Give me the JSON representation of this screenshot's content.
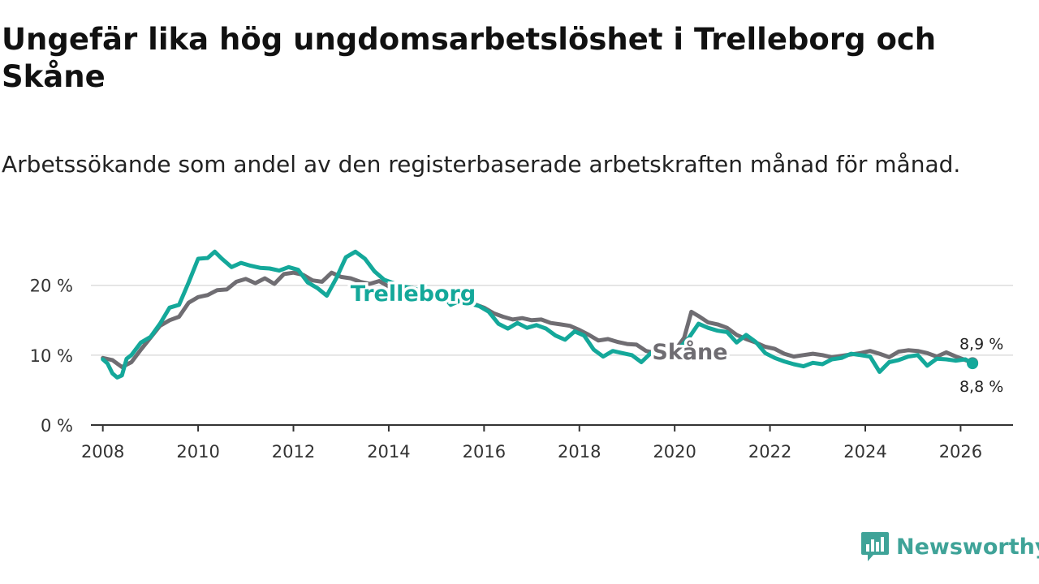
{
  "title": "Ungefär lika hög ungdomsarbetslöshet i Trelleborg och Skåne",
  "subtitle": "Arbetssökande som andel av den registerbaserade arbetskraften månad för månad.",
  "brand": {
    "name": "Newsworthy",
    "color": "#3fa398",
    "icon": "newsworthy-chart-bubble-icon"
  },
  "chart_data": {
    "type": "line",
    "ylim": [
      0,
      26
    ],
    "xlim": [
      2007.75,
      2027.1
    ],
    "y_ticks": [
      {
        "value": 0,
        "label": "0 %"
      },
      {
        "value": 10,
        "label": "10 %"
      },
      {
        "value": 20,
        "label": "20 %"
      }
    ],
    "x_ticks": [
      {
        "value": 2008,
        "label": "2008"
      },
      {
        "value": 2010,
        "label": "2010"
      },
      {
        "value": 2012,
        "label": "2012"
      },
      {
        "value": 2014,
        "label": "2014"
      },
      {
        "value": 2016,
        "label": "2016"
      },
      {
        "value": 2018,
        "label": "2018"
      },
      {
        "value": 2020,
        "label": "2020"
      },
      {
        "value": 2022,
        "label": "2022"
      },
      {
        "value": 2024,
        "label": "2024"
      },
      {
        "value": 2026,
        "label": "2026"
      }
    ],
    "grid": true,
    "series": [
      {
        "name": "Skåne",
        "color": "#6f6d72",
        "label": "Skåne",
        "end_label": "8,9 %",
        "points": [
          [
            2008.0,
            9.6
          ],
          [
            2008.2,
            9.3
          ],
          [
            2008.4,
            8.3
          ],
          [
            2008.6,
            9.0
          ],
          [
            2008.8,
            10.8
          ],
          [
            2009.0,
            12.5
          ],
          [
            2009.2,
            14.2
          ],
          [
            2009.4,
            15.0
          ],
          [
            2009.6,
            15.5
          ],
          [
            2009.8,
            17.5
          ],
          [
            2010.0,
            18.3
          ],
          [
            2010.2,
            18.6
          ],
          [
            2010.4,
            19.3
          ],
          [
            2010.6,
            19.4
          ],
          [
            2010.8,
            20.5
          ],
          [
            2011.0,
            20.9
          ],
          [
            2011.2,
            20.3
          ],
          [
            2011.4,
            21.0
          ],
          [
            2011.6,
            20.2
          ],
          [
            2011.8,
            21.6
          ],
          [
            2012.0,
            21.8
          ],
          [
            2012.2,
            21.5
          ],
          [
            2012.4,
            20.7
          ],
          [
            2012.6,
            20.5
          ],
          [
            2012.8,
            21.8
          ],
          [
            2013.0,
            21.2
          ],
          [
            2013.2,
            21.0
          ],
          [
            2013.4,
            20.5
          ],
          [
            2013.6,
            20.2
          ],
          [
            2013.8,
            20.6
          ],
          [
            2014.0,
            19.8
          ],
          [
            2014.2,
            19.2
          ],
          [
            2014.4,
            18.6
          ],
          [
            2014.6,
            19.4
          ],
          [
            2014.8,
            19.1
          ],
          [
            2015.0,
            18.6
          ],
          [
            2015.2,
            18.4
          ],
          [
            2015.4,
            17.9
          ],
          [
            2015.6,
            17.6
          ],
          [
            2015.8,
            17.3
          ],
          [
            2016.0,
            16.8
          ],
          [
            2016.2,
            16.0
          ],
          [
            2016.4,
            15.5
          ],
          [
            2016.6,
            15.1
          ],
          [
            2016.8,
            15.3
          ],
          [
            2017.0,
            15.0
          ],
          [
            2017.2,
            15.1
          ],
          [
            2017.4,
            14.6
          ],
          [
            2017.6,
            14.4
          ],
          [
            2017.8,
            14.2
          ],
          [
            2018.0,
            13.6
          ],
          [
            2018.2,
            12.9
          ],
          [
            2018.4,
            12.1
          ],
          [
            2018.6,
            12.3
          ],
          [
            2018.8,
            11.9
          ],
          [
            2019.0,
            11.6
          ],
          [
            2019.2,
            11.5
          ],
          [
            2019.4,
            10.6
          ],
          [
            2019.6,
            10.3
          ],
          [
            2019.8,
            10.5
          ],
          [
            2020.0,
            10.6
          ],
          [
            2020.2,
            12.5
          ],
          [
            2020.35,
            16.2
          ],
          [
            2020.5,
            15.6
          ],
          [
            2020.7,
            14.7
          ],
          [
            2020.9,
            14.4
          ],
          [
            2021.1,
            13.9
          ],
          [
            2021.3,
            12.9
          ],
          [
            2021.5,
            12.3
          ],
          [
            2021.7,
            11.8
          ],
          [
            2021.9,
            11.2
          ],
          [
            2022.1,
            10.9
          ],
          [
            2022.3,
            10.2
          ],
          [
            2022.5,
            9.8
          ],
          [
            2022.7,
            10.0
          ],
          [
            2022.9,
            10.2
          ],
          [
            2023.1,
            10.0
          ],
          [
            2023.3,
            9.7
          ],
          [
            2023.5,
            9.9
          ],
          [
            2023.7,
            10.1
          ],
          [
            2023.9,
            10.3
          ],
          [
            2024.1,
            10.6
          ],
          [
            2024.3,
            10.2
          ],
          [
            2024.5,
            9.7
          ],
          [
            2024.7,
            10.5
          ],
          [
            2024.9,
            10.7
          ],
          [
            2025.1,
            10.6
          ],
          [
            2025.3,
            10.3
          ],
          [
            2025.5,
            9.8
          ],
          [
            2025.7,
            10.4
          ],
          [
            2025.9,
            9.8
          ],
          [
            2026.1,
            9.3
          ],
          [
            2026.25,
            8.9
          ]
        ]
      },
      {
        "name": "Trelleborg",
        "color": "#14a89a",
        "label": "Trelleborg",
        "end_label": "8,8 %",
        "points": [
          [
            2008.0,
            9.4
          ],
          [
            2008.1,
            8.8
          ],
          [
            2008.2,
            7.4
          ],
          [
            2008.3,
            6.8
          ],
          [
            2008.4,
            7.1
          ],
          [
            2008.5,
            9.5
          ],
          [
            2008.6,
            10.0
          ],
          [
            2008.8,
            11.8
          ],
          [
            2009.0,
            12.6
          ],
          [
            2009.2,
            14.5
          ],
          [
            2009.4,
            16.8
          ],
          [
            2009.6,
            17.2
          ],
          [
            2009.8,
            20.4
          ],
          [
            2010.0,
            23.8
          ],
          [
            2010.2,
            23.9
          ],
          [
            2010.35,
            24.8
          ],
          [
            2010.5,
            23.8
          ],
          [
            2010.7,
            22.6
          ],
          [
            2010.9,
            23.2
          ],
          [
            2011.1,
            22.8
          ],
          [
            2011.3,
            22.5
          ],
          [
            2011.5,
            22.4
          ],
          [
            2011.7,
            22.1
          ],
          [
            2011.9,
            22.6
          ],
          [
            2012.1,
            22.2
          ],
          [
            2012.3,
            20.4
          ],
          [
            2012.5,
            19.6
          ],
          [
            2012.7,
            18.5
          ],
          [
            2012.9,
            21.0
          ],
          [
            2013.1,
            24.0
          ],
          [
            2013.3,
            24.8
          ],
          [
            2013.5,
            23.8
          ],
          [
            2013.7,
            22.0
          ],
          [
            2013.9,
            20.8
          ],
          [
            2014.1,
            20.3
          ],
          [
            2014.3,
            19.8
          ],
          [
            2014.5,
            19.6
          ],
          [
            2014.7,
            19.2
          ],
          [
            2014.9,
            19.1
          ],
          [
            2015.1,
            18.8
          ],
          [
            2015.3,
            17.2
          ],
          [
            2015.5,
            17.8
          ],
          [
            2015.7,
            17.4
          ],
          [
            2015.9,
            17.0
          ],
          [
            2016.1,
            16.2
          ],
          [
            2016.3,
            14.5
          ],
          [
            2016.5,
            13.8
          ],
          [
            2016.7,
            14.6
          ],
          [
            2016.9,
            13.9
          ],
          [
            2017.1,
            14.3
          ],
          [
            2017.3,
            13.8
          ],
          [
            2017.5,
            12.8
          ],
          [
            2017.7,
            12.2
          ],
          [
            2017.9,
            13.4
          ],
          [
            2018.1,
            12.8
          ],
          [
            2018.3,
            10.8
          ],
          [
            2018.5,
            9.8
          ],
          [
            2018.7,
            10.6
          ],
          [
            2018.9,
            10.3
          ],
          [
            2019.1,
            10.0
          ],
          [
            2019.3,
            9.0
          ],
          [
            2019.5,
            10.3
          ],
          [
            2019.7,
            10.5
          ],
          [
            2019.9,
            10.4
          ],
          [
            2020.1,
            11.0
          ],
          [
            2020.3,
            12.5
          ],
          [
            2020.5,
            14.5
          ],
          [
            2020.7,
            13.9
          ],
          [
            2020.9,
            13.5
          ],
          [
            2021.1,
            13.3
          ],
          [
            2021.3,
            11.8
          ],
          [
            2021.5,
            12.9
          ],
          [
            2021.7,
            11.9
          ],
          [
            2021.9,
            10.3
          ],
          [
            2022.1,
            9.6
          ],
          [
            2022.3,
            9.1
          ],
          [
            2022.5,
            8.7
          ],
          [
            2022.7,
            8.4
          ],
          [
            2022.9,
            8.9
          ],
          [
            2023.1,
            8.7
          ],
          [
            2023.3,
            9.4
          ],
          [
            2023.5,
            9.6
          ],
          [
            2023.7,
            10.2
          ],
          [
            2023.9,
            10.0
          ],
          [
            2024.1,
            9.8
          ],
          [
            2024.3,
            7.6
          ],
          [
            2024.5,
            9.0
          ],
          [
            2024.7,
            9.3
          ],
          [
            2024.9,
            9.8
          ],
          [
            2025.1,
            10.0
          ],
          [
            2025.3,
            8.5
          ],
          [
            2025.5,
            9.5
          ],
          [
            2025.7,
            9.4
          ],
          [
            2025.9,
            9.2
          ],
          [
            2026.1,
            9.4
          ],
          [
            2026.25,
            8.8
          ]
        ]
      }
    ]
  }
}
